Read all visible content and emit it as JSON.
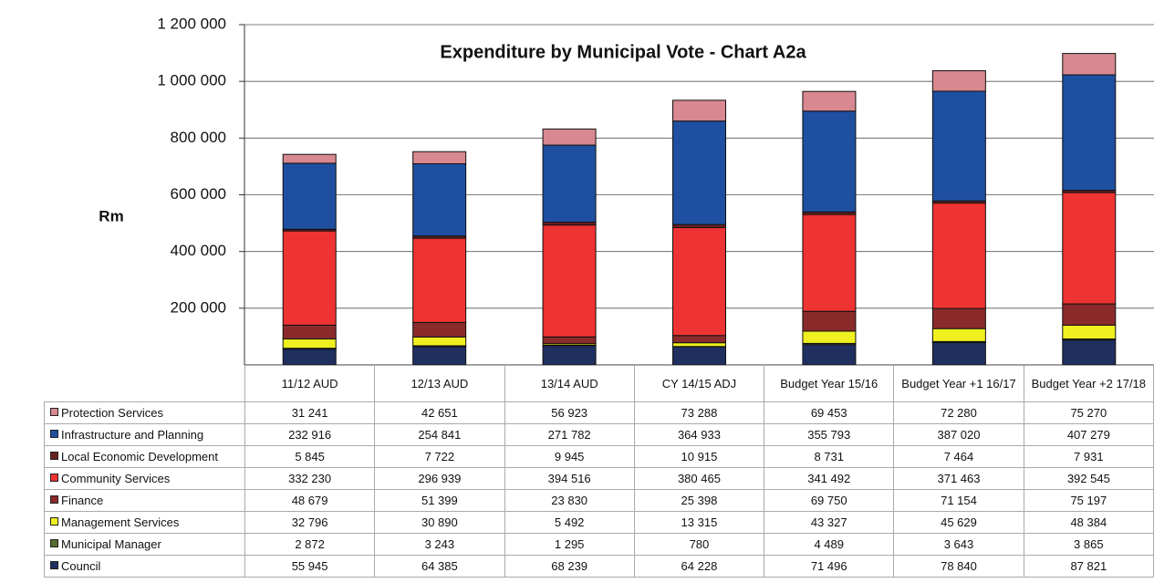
{
  "chart_data": {
    "type": "bar",
    "stacked": true,
    "title": "Expenditure by Municipal Vote - Chart A2a",
    "y_label": "Rm",
    "categories": [
      "11/12 AUD",
      "12/13 AUD",
      "13/14 AUD",
      "CY  14/15 ADJ",
      "Budget Year 15/16",
      "Budget Year +1 16/17",
      "Budget Year +2 17/18"
    ],
    "series": [
      {
        "name": "Council",
        "color": "#1f2f5f",
        "values": [
          55945,
          64385,
          68239,
          64228,
          71496,
          78840,
          87821
        ],
        "value_labels": [
          "55 945",
          "64 385",
          "68 239",
          "64 228",
          "71 496",
          "78 840",
          "87 821"
        ]
      },
      {
        "name": "Municipal Manager",
        "color": "#556b2f",
        "values": [
          2872,
          3243,
          1295,
          780,
          4489,
          3643,
          3865
        ],
        "value_labels": [
          "2 872",
          "3 243",
          "1 295",
          "780",
          "4 489",
          "3 643",
          "3 865"
        ]
      },
      {
        "name": "Management Services",
        "color": "#f0f020",
        "values": [
          32796,
          30890,
          5492,
          13315,
          43327,
          45629,
          48384
        ],
        "value_labels": [
          "32 796",
          "30 890",
          "5 492",
          "13 315",
          "43 327",
          "45 629",
          "48 384"
        ]
      },
      {
        "name": "Finance",
        "color": "#8b2a2a",
        "values": [
          48679,
          51399,
          23830,
          25398,
          69750,
          71154,
          75197
        ],
        "value_labels": [
          "48 679",
          "51 399",
          "23 830",
          "25 398",
          "69 750",
          "71 154",
          "75 197"
        ]
      },
      {
        "name": "Community Services",
        "color": "#ee3333",
        "values": [
          332230,
          296939,
          394516,
          380465,
          341492,
          371463,
          392545
        ],
        "value_labels": [
          "332 230",
          "296 939",
          "394 516",
          "380 465",
          "341 492",
          "371 463",
          "392 545"
        ]
      },
      {
        "name": "Local Economic Development",
        "color": "#6b2020",
        "values": [
          5845,
          7722,
          9945,
          10915,
          8731,
          7464,
          7931
        ],
        "value_labels": [
          "5 845",
          "7 722",
          "9 945",
          "10 915",
          "8 731",
          "7 464",
          "7 931"
        ]
      },
      {
        "name": "Infrastructure and Planning",
        "color": "#1f4fa0",
        "values": [
          232916,
          254841,
          271782,
          364933,
          355793,
          387020,
          407279
        ],
        "value_labels": [
          "232 916",
          "254 841",
          "271 782",
          "364 933",
          "355 793",
          "387 020",
          "407 279"
        ]
      },
      {
        "name": "Protection Services",
        "color": "#d88890",
        "values": [
          31241,
          42651,
          56923,
          73288,
          69453,
          72280,
          75270
        ],
        "value_labels": [
          "31 241",
          "42 651",
          "56 923",
          "73 288",
          "69 453",
          "72 280",
          "75 270"
        ]
      }
    ],
    "ylim": [
      0,
      1200000
    ],
    "yticks": [
      {
        "value": 200000,
        "label": "200 000"
      },
      {
        "value": 400000,
        "label": "400 000"
      },
      {
        "value": 600000,
        "label": "600 000"
      },
      {
        "value": 800000,
        "label": "800 000"
      },
      {
        "value": 1000000,
        "label": "1 000 000"
      },
      {
        "value": 1200000,
        "label": "1 200 000"
      }
    ],
    "grid": true
  }
}
